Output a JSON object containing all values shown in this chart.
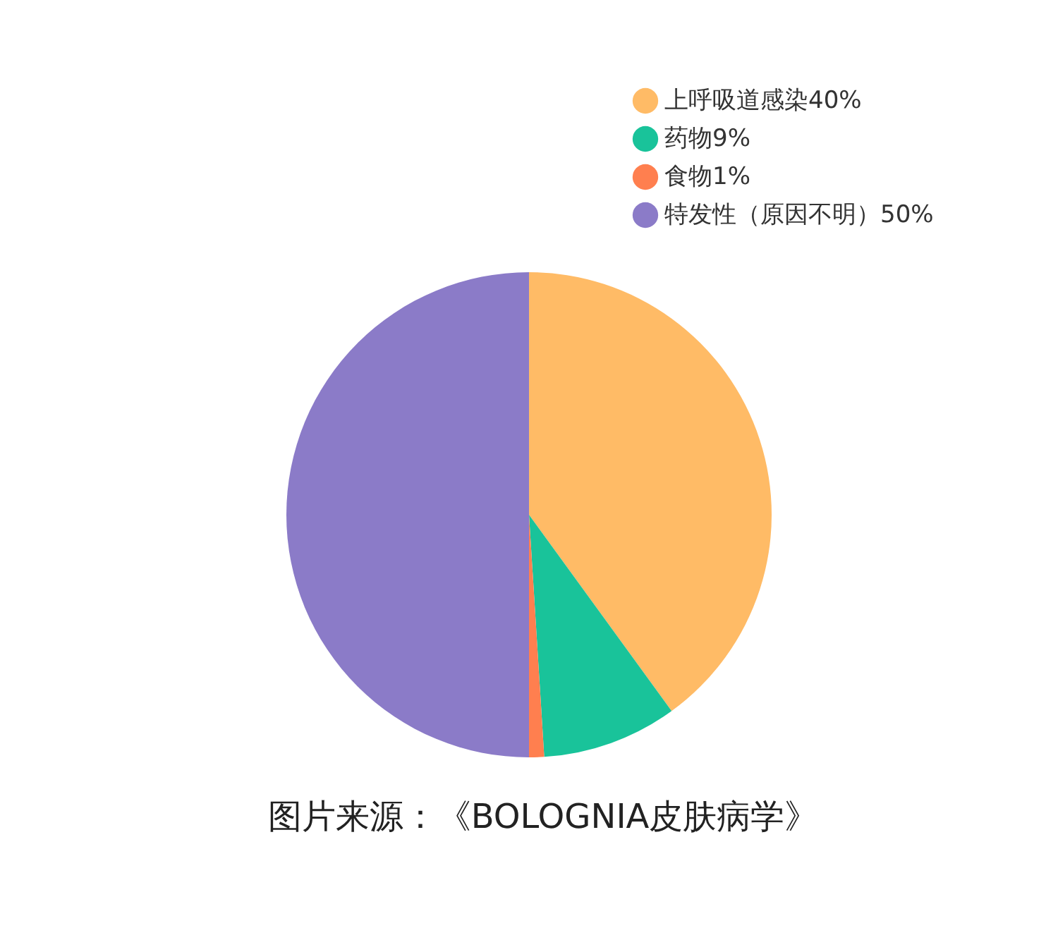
{
  "chart_data": {
    "type": "pie",
    "categories": [
      "上呼吸道感染40%",
      "药物9%",
      "食物1%",
      "特发性（原因不明）50%"
    ],
    "values": [
      40,
      9,
      1,
      50
    ],
    "colors": [
      "#ffbb66",
      "#19c39a",
      "#ff7f4f",
      "#8b7bc8"
    ],
    "legend": "top right",
    "annotations": [
      "图片来源：《BOLOGNIA皮肤病学》"
    ]
  }
}
